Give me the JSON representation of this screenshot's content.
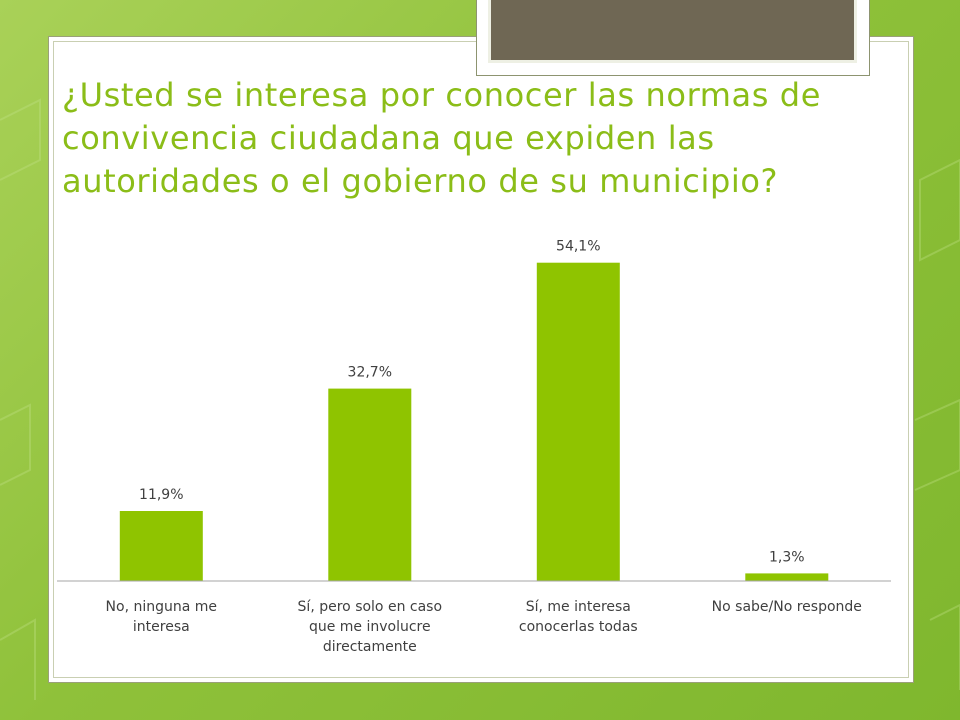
{
  "slide": {
    "title": "¿Usted se interesa por conocer las normas de convivencia ciudadana que expiden las autoridades o el gobierno de su municipio?"
  },
  "colors": {
    "bar": "#8fc400",
    "title": "#8bbd18",
    "text": "#404040",
    "axis": "#a6a6a6"
  },
  "chart_data": {
    "type": "bar",
    "categories": [
      [
        "No, ninguna me",
        "interesa"
      ],
      [
        "Sí, pero solo en caso",
        "que me involucre",
        "directamente"
      ],
      [
        "Sí, me interesa",
        "conocerlas todas"
      ],
      [
        "No sabe/No responde"
      ]
    ],
    "values": [
      11.9,
      32.7,
      54.1,
      1.3
    ],
    "data_labels": [
      "11,9%",
      "32,7%",
      "54,1%",
      "1,3%"
    ],
    "ylim": [
      0,
      60
    ],
    "grid": false,
    "legend": false,
    "title": "",
    "xlabel": "",
    "ylabel": ""
  }
}
